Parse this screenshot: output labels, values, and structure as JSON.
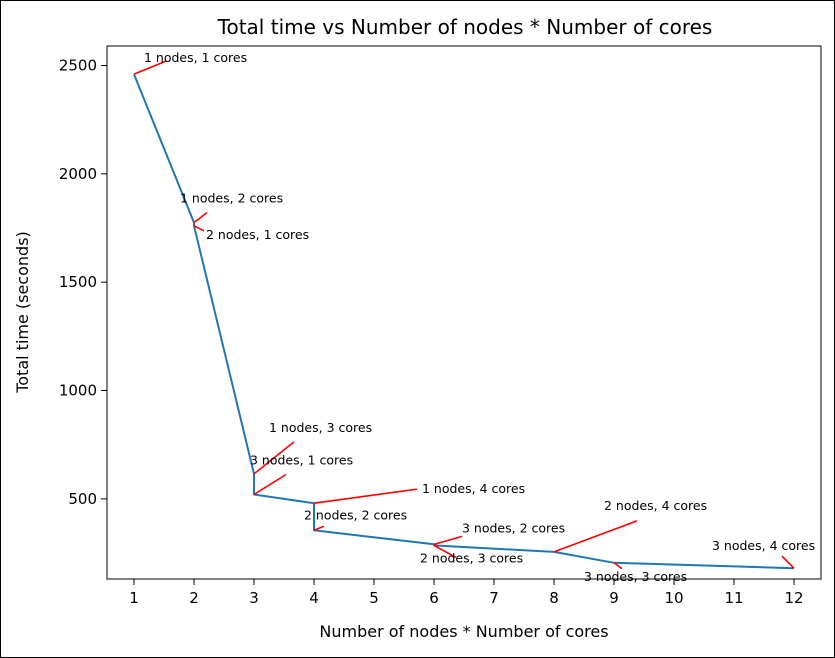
{
  "chart_data": {
    "type": "line",
    "title": "Total time vs Number of nodes * Number of cores",
    "xlabel": "Number of nodes * Number of cores",
    "ylabel": "Total time (seconds)",
    "xlim": [
      0.55,
      12.45
    ],
    "ylim": [
      130,
      2590
    ],
    "xticks": [
      1,
      2,
      3,
      4,
      5,
      6,
      7,
      8,
      9,
      10,
      11,
      12
    ],
    "yticks": [
      500,
      1000,
      1500,
      2000,
      2500
    ],
    "grid": false,
    "series": [
      {
        "color": "#1f77b4",
        "points": [
          {
            "x": 1,
            "y": 2460
          },
          {
            "x": 2,
            "y": 1775
          },
          {
            "x": 2,
            "y": 1760
          },
          {
            "x": 3,
            "y": 615
          },
          {
            "x": 3,
            "y": 520
          },
          {
            "x": 4,
            "y": 480
          },
          {
            "x": 4,
            "y": 355
          },
          {
            "x": 6,
            "y": 290
          },
          {
            "x": 6,
            "y": 285
          },
          {
            "x": 8,
            "y": 255
          },
          {
            "x": 9,
            "y": 205
          },
          {
            "x": 12,
            "y": 180
          }
        ]
      }
    ],
    "annotations": [
      {
        "text": "1 nodes, 1 cores",
        "x": 1,
        "y": 2460
      },
      {
        "text": "1 nodes, 2 cores",
        "x": 2,
        "y": 1775
      },
      {
        "text": "2 nodes, 1 cores",
        "x": 2,
        "y": 1760
      },
      {
        "text": "1 nodes, 3 cores",
        "x": 3,
        "y": 615
      },
      {
        "text": "3 nodes, 1 cores",
        "x": 3,
        "y": 520
      },
      {
        "text": "1 nodes, 4 cores",
        "x": 4,
        "y": 480
      },
      {
        "text": "2 nodes, 2 cores",
        "x": 4,
        "y": 355
      },
      {
        "text": "3 nodes, 2 cores",
        "x": 6,
        "y": 290
      },
      {
        "text": "2 nodes, 3 cores",
        "x": 6,
        "y": 285
      },
      {
        "text": "2 nodes, 4 cores",
        "x": 8,
        "y": 255
      },
      {
        "text": "3 nodes, 3 cores",
        "x": 9,
        "y": 205
      },
      {
        "text": "3 nodes, 4 cores",
        "x": 12,
        "y": 180
      }
    ],
    "annotation_color": "#ff0000"
  }
}
